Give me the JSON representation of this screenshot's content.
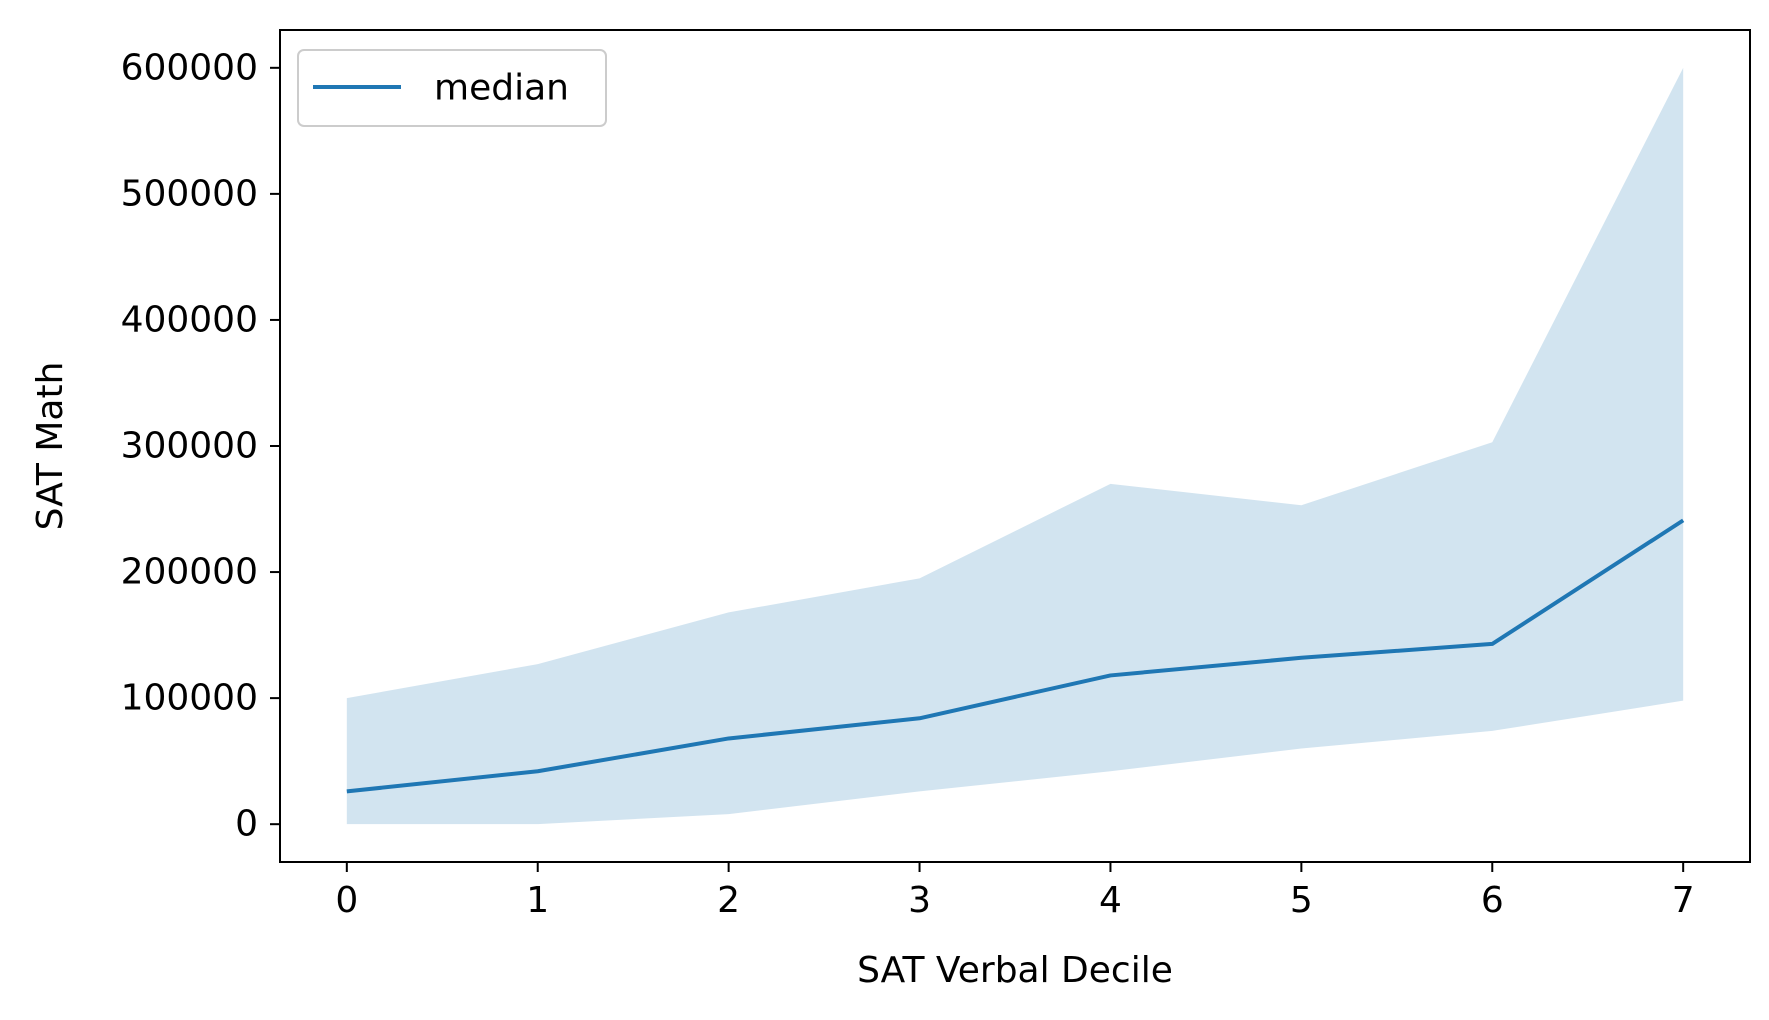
{
  "chart_data": {
    "type": "line",
    "title": "",
    "xlabel": "SAT Verbal Decile",
    "ylabel": "SAT Math",
    "x": [
      0,
      1,
      2,
      3,
      4,
      5,
      6,
      7
    ],
    "xlim": [
      -0.35,
      7.35
    ],
    "ylim": [
      -30000,
      630000
    ],
    "xticks": [
      0,
      1,
      2,
      3,
      4,
      5,
      6,
      7
    ],
    "yticks": [
      0,
      100000,
      200000,
      300000,
      400000,
      500000,
      600000
    ],
    "xtick_labels": [
      "0",
      "1",
      "2",
      "3",
      "4",
      "5",
      "6",
      "7"
    ],
    "ytick_labels": [
      "0",
      "100000",
      "200000",
      "300000",
      "400000",
      "500000",
      "600000"
    ],
    "grid": false,
    "legend_position": "top-left",
    "series": [
      {
        "name": "median",
        "color": "#1f77b4",
        "values": [
          26000,
          42000,
          68000,
          84000,
          118000,
          132000,
          143000,
          241000
        ]
      }
    ],
    "band": {
      "color": "#1f77b4",
      "opacity": 0.2,
      "lower": [
        0,
        0,
        8000,
        26000,
        42000,
        60000,
        74000,
        98000
      ],
      "upper": [
        100000,
        127000,
        168000,
        195000,
        270000,
        253000,
        303000,
        600000
      ]
    }
  }
}
